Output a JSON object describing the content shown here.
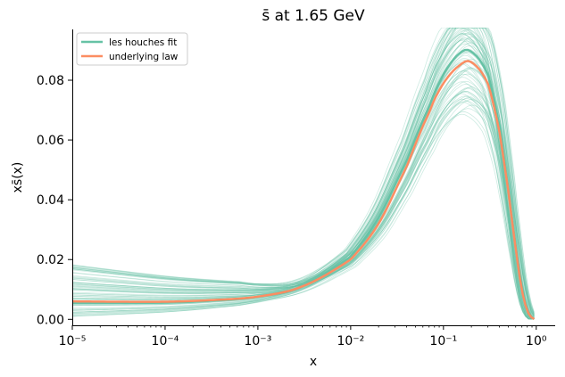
{
  "chart_data": {
    "type": "line",
    "title": "s̄ at 1.65 GeV",
    "xlabel": "x",
    "ylabel": "xs̄(x)",
    "xscale": "log",
    "xlim": [
      1e-05,
      1.6
    ],
    "ylim": [
      -0.002,
      0.097
    ],
    "grid": false,
    "legend_position": "top-left",
    "x_ticks": [
      {
        "value": 1e-05,
        "label": "10⁻⁵"
      },
      {
        "value": 0.0001,
        "label": "10⁻⁴"
      },
      {
        "value": 0.001,
        "label": "10⁻³"
      },
      {
        "value": 0.01,
        "label": "10⁻²"
      },
      {
        "value": 0.1,
        "label": "10⁻¹"
      },
      {
        "value": 1,
        "label": "10⁰"
      }
    ],
    "y_ticks": [
      {
        "value": 0.0,
        "label": "0.00"
      },
      {
        "value": 0.02,
        "label": "0.02"
      },
      {
        "value": 0.04,
        "label": "0.04"
      },
      {
        "value": 0.06,
        "label": "0.06"
      },
      {
        "value": 0.08,
        "label": "0.08"
      }
    ],
    "x": [
      1e-05,
      3e-05,
      0.0001,
      0.0003,
      0.001,
      0.003,
      0.01,
      0.02,
      0.04,
      0.07,
      0.1,
      0.15,
      0.2,
      0.3,
      0.4,
      0.5,
      0.6,
      0.7,
      0.8,
      0.9,
      0.95
    ],
    "series": [
      {
        "name": "les houches fit",
        "color": "#66c2a5",
        "role": "central",
        "values": [
          0.0055,
          0.0055,
          0.0056,
          0.0062,
          0.0075,
          0.011,
          0.021,
          0.034,
          0.053,
          0.071,
          0.082,
          0.089,
          0.0895,
          0.082,
          0.065,
          0.044,
          0.025,
          0.011,
          0.0035,
          0.0006,
          0.0001
        ]
      },
      {
        "name": "underlying law",
        "color": "#fc8d62",
        "role": "truth",
        "values": [
          0.006,
          0.0059,
          0.0059,
          0.0064,
          0.0076,
          0.011,
          0.02,
          0.032,
          0.051,
          0.069,
          0.079,
          0.085,
          0.086,
          0.079,
          0.063,
          0.043,
          0.024,
          0.01,
          0.003,
          0.0005,
          0.0001
        ]
      }
    ],
    "replicas": {
      "color": "#66c2a5",
      "count": 80,
      "low_x_spread": [
        0.001,
        0.019
      ],
      "peak_spread": [
        0.068,
        0.105
      ]
    }
  }
}
